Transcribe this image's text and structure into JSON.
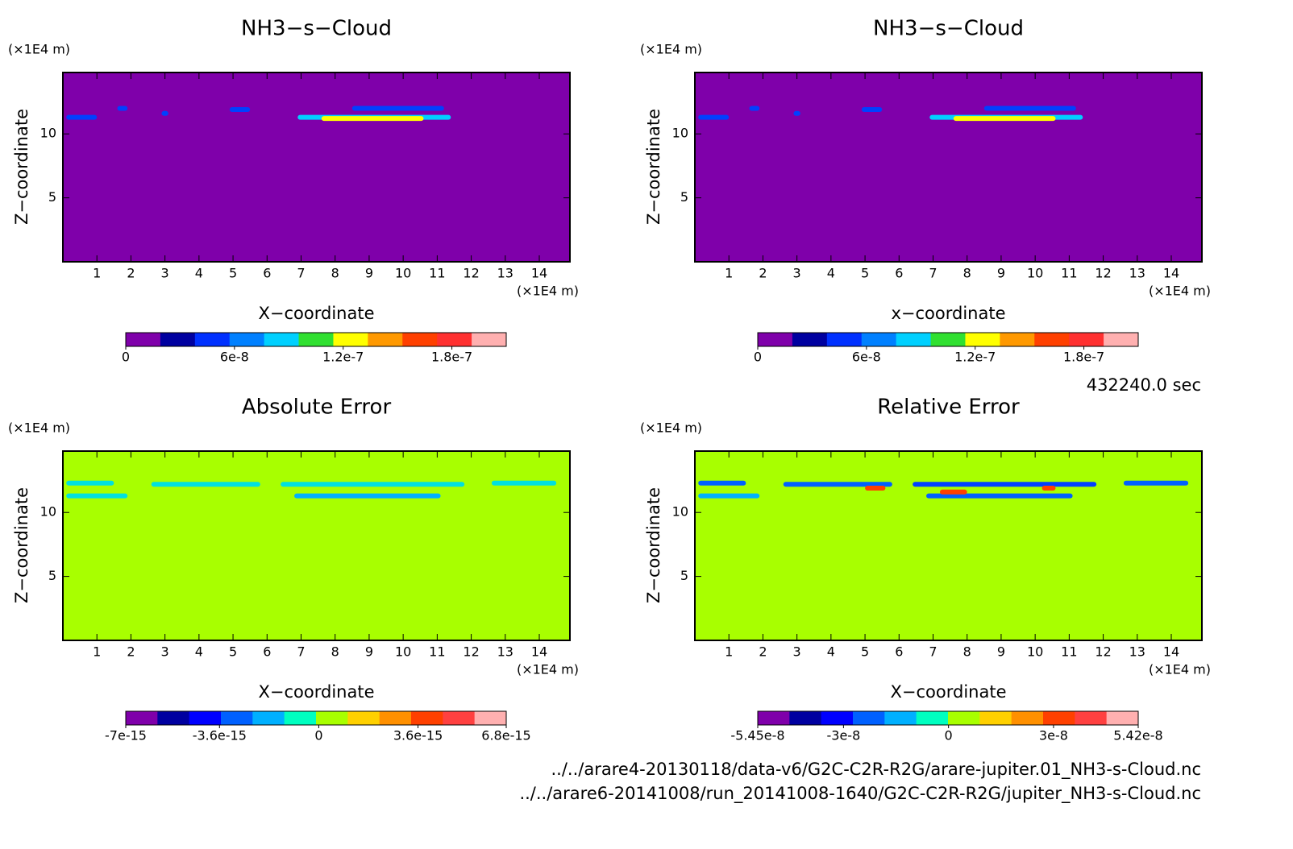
{
  "chart_data": [
    {
      "type": "contour",
      "title": "NH3−s−Cloud",
      "xlabel": "X−coordinate",
      "ylabel": "Z−coordinate",
      "x_unit": "(×1E4 m)",
      "y_unit": "(×1E4 m)",
      "xlim": [
        0,
        14.9
      ],
      "ylim": [
        0,
        14.8
      ],
      "xticks": [
        1,
        2,
        3,
        4,
        5,
        6,
        7,
        8,
        9,
        10,
        11,
        12,
        13,
        14
      ],
      "yticks": [
        5,
        10
      ],
      "fill_color": "#7f00aa",
      "bands": [
        {
          "x": [
            0.1,
            1
          ],
          "z": 11.3,
          "color": "#0040ff"
        },
        {
          "x": [
            1.6,
            1.9
          ],
          "z": 12,
          "color": "#0040ff"
        },
        {
          "x": [
            2.9,
            3.1
          ],
          "z": 11.6,
          "color": "#0040ff"
        },
        {
          "x": [
            4.9,
            5.5
          ],
          "z": 11.9,
          "color": "#0040ff"
        },
        {
          "x": [
            6.9,
            11.4
          ],
          "z": 11.3,
          "color": "#00d0ff"
        },
        {
          "x": [
            7.6,
            10.6
          ],
          "z": 11.2,
          "color": "#ffff00"
        },
        {
          "x": [
            8.5,
            11.2
          ],
          "z": 12,
          "color": "#0040ff"
        }
      ],
      "colorbar": {
        "lim": [
          0,
          2.1e-07
        ],
        "ticks": [
          0,
          6e-08,
          1.2e-07,
          1.8e-07
        ],
        "colors": [
          "#7f00aa",
          "#0000a0",
          "#0030ff",
          "#0080ff",
          "#00d0ff",
          "#30e030",
          "#ffff00",
          "#ff9900",
          "#ff4000",
          "#ff3030",
          "#ffb0b0"
        ]
      }
    },
    {
      "type": "contour",
      "title": "NH3−s−Cloud",
      "xlabel": "x−coordinate",
      "ylabel": "Z−coordinate",
      "x_unit": "(×1E4 m)",
      "y_unit": "(×1E4 m)",
      "xlim": [
        0,
        14.9
      ],
      "ylim": [
        0,
        14.8
      ],
      "xticks": [
        1,
        2,
        3,
        4,
        5,
        6,
        7,
        8,
        9,
        10,
        11,
        12,
        13,
        14
      ],
      "yticks": [
        5,
        10
      ],
      "fill_color": "#7f00aa",
      "bands": [
        {
          "x": [
            0.1,
            1
          ],
          "z": 11.3,
          "color": "#0040ff"
        },
        {
          "x": [
            1.6,
            1.9
          ],
          "z": 12,
          "color": "#0040ff"
        },
        {
          "x": [
            2.9,
            3.1
          ],
          "z": 11.6,
          "color": "#0040ff"
        },
        {
          "x": [
            4.9,
            5.5
          ],
          "z": 11.9,
          "color": "#0040ff"
        },
        {
          "x": [
            6.9,
            11.4
          ],
          "z": 11.3,
          "color": "#00d0ff"
        },
        {
          "x": [
            7.6,
            10.6
          ],
          "z": 11.2,
          "color": "#ffff00"
        },
        {
          "x": [
            8.5,
            11.2
          ],
          "z": 12,
          "color": "#0040ff"
        }
      ],
      "colorbar": {
        "lim": [
          0,
          2.1e-07
        ],
        "ticks": [
          0,
          6e-08,
          1.2e-07,
          1.8e-07
        ],
        "colors": [
          "#7f00aa",
          "#0000a0",
          "#0030ff",
          "#0080ff",
          "#00d0ff",
          "#30e030",
          "#ffff00",
          "#ff9900",
          "#ff4000",
          "#ff3030",
          "#ffb0b0"
        ]
      }
    },
    {
      "type": "contour",
      "title": "Absolute Error",
      "xlabel": "X−coordinate",
      "ylabel": "Z−coordinate",
      "x_unit": "(×1E4 m)",
      "y_unit": "(×1E4 m)",
      "xlim": [
        0,
        14.9
      ],
      "ylim": [
        0,
        14.8
      ],
      "xticks": [
        1,
        2,
        3,
        4,
        5,
        6,
        7,
        8,
        9,
        10,
        11,
        12,
        13,
        14
      ],
      "yticks": [
        5,
        10
      ],
      "fill_color": "#a8ff00",
      "bands": [
        {
          "x": [
            0.1,
            1.5
          ],
          "z": 12.3,
          "color": "#00e0e0"
        },
        {
          "x": [
            2.6,
            5.8
          ],
          "z": 12.2,
          "color": "#00e0e0"
        },
        {
          "x": [
            6.4,
            11.8
          ],
          "z": 12.2,
          "color": "#00e0e0"
        },
        {
          "x": [
            12.6,
            14.5
          ],
          "z": 12.3,
          "color": "#00e0e0"
        },
        {
          "x": [
            0.1,
            1.9
          ],
          "z": 11.3,
          "color": "#00e0e0"
        },
        {
          "x": [
            6.8,
            11.1
          ],
          "z": 11.3,
          "color": "#00b0ff"
        }
      ],
      "colorbar": {
        "lim": [
          -7e-15,
          6.8e-15
        ],
        "ticks": [
          -7e-15,
          -3.6e-15,
          0,
          3.6e-15,
          6.8e-15
        ],
        "colors": [
          "#7f00aa",
          "#0000a0",
          "#0000ff",
          "#0060ff",
          "#00b0ff",
          "#00ffc0",
          "#a8ff00",
          "#ffd000",
          "#ff9000",
          "#ff4000",
          "#ff4040",
          "#ffb0b0"
        ]
      }
    },
    {
      "type": "contour",
      "title": "Relative Error",
      "xlabel": "X−coordinate",
      "ylabel": "Z−coordinate",
      "x_unit": "(×1E4 m)",
      "y_unit": "(×1E4 m)",
      "xlim": [
        0,
        14.9
      ],
      "ylim": [
        0,
        14.8
      ],
      "xticks": [
        1,
        2,
        3,
        4,
        5,
        6,
        7,
        8,
        9,
        10,
        11,
        12,
        13,
        14
      ],
      "yticks": [
        5,
        10
      ],
      "fill_color": "#a8ff00",
      "bands": [
        {
          "x": [
            0.1,
            1.5
          ],
          "z": 12.3,
          "color": "#0060ff"
        },
        {
          "x": [
            2.6,
            5.8
          ],
          "z": 12.2,
          "color": "#0060ff"
        },
        {
          "x": [
            6.4,
            11.8
          ],
          "z": 12.2,
          "color": "#0040ff"
        },
        {
          "x": [
            12.6,
            14.5
          ],
          "z": 12.3,
          "color": "#0060ff"
        },
        {
          "x": [
            0.1,
            1.9
          ],
          "z": 11.3,
          "color": "#00b0ff"
        },
        {
          "x": [
            6.8,
            11.1
          ],
          "z": 11.3,
          "color": "#0060ff"
        },
        {
          "x": [
            5,
            5.6
          ],
          "z": 11.9,
          "color": "#ff4000"
        },
        {
          "x": [
            7.2,
            8
          ],
          "z": 11.6,
          "color": "#ff4000"
        },
        {
          "x": [
            10.2,
            10.6
          ],
          "z": 11.9,
          "color": "#ff4000"
        }
      ],
      "colorbar": {
        "lim": [
          -5.45e-08,
          5.42e-08
        ],
        "ticks": [
          -5.45e-08,
          -3e-08,
          0,
          3e-08,
          5.42e-08
        ],
        "colors": [
          "#7f00aa",
          "#0000a0",
          "#0000ff",
          "#0060ff",
          "#00b0ff",
          "#00ffc0",
          "#a8ff00",
          "#ffd000",
          "#ff9000",
          "#ff4000",
          "#ff4040",
          "#ffb0b0"
        ]
      }
    }
  ],
  "footer": {
    "time": "432240.0 sec",
    "files": [
      "../../arare4-20130118/data-v6/G2C-C2R-R2G/arare-jupiter.01_NH3-s-Cloud.nc",
      "../../arare6-20141008/run_20141008-1640/G2C-C2R-R2G/jupiter_NH3-s-Cloud.nc"
    ]
  }
}
